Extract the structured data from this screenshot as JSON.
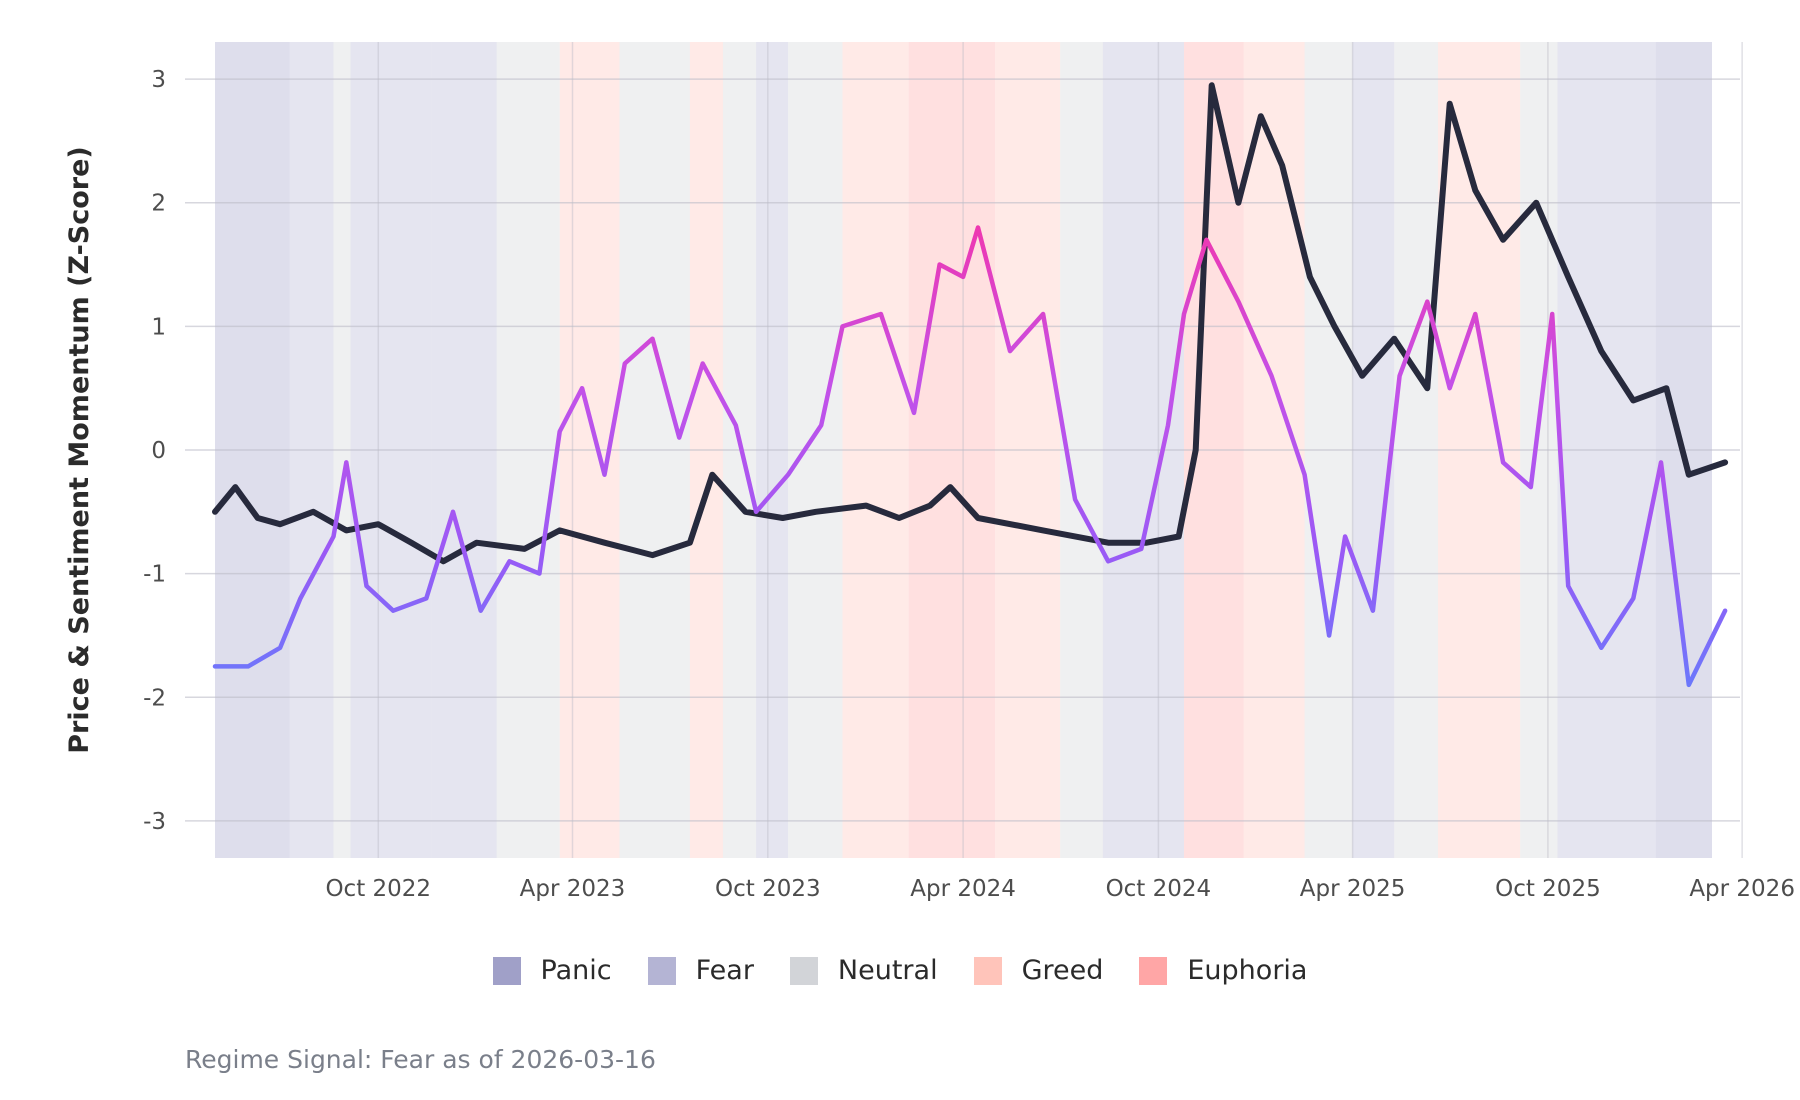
{
  "chart_data": {
    "type": "line",
    "title": "",
    "xlabel": "",
    "ylabel": "Price & Sentiment Momentum (Z-Score)",
    "caption": "Regime Signal: Fear as of 2026-03-16",
    "xlim": [
      "2022-05-01",
      "2026-03-30"
    ],
    "ylim": [
      -3.3,
      3.3
    ],
    "x_ticks": [
      {
        "date": "2022-10-01",
        "label": "Oct 2022"
      },
      {
        "date": "2023-04-01",
        "label": "Apr 2023"
      },
      {
        "date": "2023-10-01",
        "label": "Oct 2023"
      },
      {
        "date": "2024-04-01",
        "label": "Apr 2024"
      },
      {
        "date": "2024-10-01",
        "label": "Oct 2024"
      },
      {
        "date": "2025-04-01",
        "label": "Apr 2025"
      },
      {
        "date": "2025-10-01",
        "label": "Oct 2025"
      },
      {
        "date": "2026-04-01",
        "label": "Apr 2026"
      }
    ],
    "y_ticks": [
      {
        "value": 3,
        "label": "3"
      },
      {
        "value": 2,
        "label": "2"
      },
      {
        "value": 1,
        "label": "1"
      },
      {
        "value": 0,
        "label": "0"
      },
      {
        "value": -1,
        "label": "-1"
      },
      {
        "value": -2,
        "label": "-2"
      },
      {
        "value": -3,
        "label": "-3"
      }
    ],
    "grid": true,
    "legend_position": "bottom",
    "legend": [
      {
        "name": "Panic",
        "color": "#a0a0c8"
      },
      {
        "name": "Fear",
        "color": "#b4b4d4"
      },
      {
        "name": "Neutral",
        "color": "#d2d4d8"
      },
      {
        "name": "Greed",
        "color": "#ffc4ba"
      },
      {
        "name": "Euphoria",
        "color": "#ffa6a6"
      }
    ],
    "regime_bands": [
      {
        "start": "2022-05-01",
        "end": "2022-07-10",
        "regime": "Panic"
      },
      {
        "start": "2022-07-10",
        "end": "2022-08-20",
        "regime": "Fear"
      },
      {
        "start": "2022-08-20",
        "end": "2022-09-05",
        "regime": "Neutral"
      },
      {
        "start": "2022-09-05",
        "end": "2022-11-20",
        "regime": "Fear"
      },
      {
        "start": "2022-11-20",
        "end": "2023-01-20",
        "regime": "Fear"
      },
      {
        "start": "2023-01-20",
        "end": "2023-03-20",
        "regime": "Neutral"
      },
      {
        "start": "2023-03-20",
        "end": "2023-05-15",
        "regime": "Greed"
      },
      {
        "start": "2023-05-15",
        "end": "2023-07-20",
        "regime": "Neutral"
      },
      {
        "start": "2023-07-20",
        "end": "2023-08-20",
        "regime": "Greed"
      },
      {
        "start": "2023-08-20",
        "end": "2023-09-20",
        "regime": "Neutral"
      },
      {
        "start": "2023-09-20",
        "end": "2023-10-20",
        "regime": "Fear"
      },
      {
        "start": "2023-10-20",
        "end": "2023-12-10",
        "regime": "Neutral"
      },
      {
        "start": "2023-12-10",
        "end": "2024-02-10",
        "regime": "Greed"
      },
      {
        "start": "2024-02-10",
        "end": "2024-05-01",
        "regime": "Euphoria"
      },
      {
        "start": "2024-05-01",
        "end": "2024-07-01",
        "regime": "Greed"
      },
      {
        "start": "2024-07-01",
        "end": "2024-08-10",
        "regime": "Neutral"
      },
      {
        "start": "2024-08-10",
        "end": "2024-10-25",
        "regime": "Fear"
      },
      {
        "start": "2024-10-25",
        "end": "2024-12-20",
        "regime": "Euphoria"
      },
      {
        "start": "2024-12-20",
        "end": "2025-02-15",
        "regime": "Greed"
      },
      {
        "start": "2025-02-15",
        "end": "2025-04-01",
        "regime": "Neutral"
      },
      {
        "start": "2025-04-01",
        "end": "2025-05-10",
        "regime": "Fear"
      },
      {
        "start": "2025-05-10",
        "end": "2025-06-20",
        "regime": "Neutral"
      },
      {
        "start": "2025-06-20",
        "end": "2025-09-05",
        "regime": "Greed"
      },
      {
        "start": "2025-09-05",
        "end": "2025-10-10",
        "regime": "Neutral"
      },
      {
        "start": "2025-10-10",
        "end": "2026-01-10",
        "regime": "Fear"
      },
      {
        "start": "2026-01-10",
        "end": "2026-03-16",
        "regime": "Panic"
      }
    ],
    "series": [
      {
        "name": "",
        "color": "#272a3d",
        "points": [
          [
            "2022-05-01",
            -0.5
          ],
          [
            "2022-05-20",
            -0.3
          ],
          [
            "2022-06-10",
            -0.55
          ],
          [
            "2022-07-01",
            -0.6
          ],
          [
            "2022-08-01",
            -0.5
          ],
          [
            "2022-09-01",
            -0.65
          ],
          [
            "2022-10-01",
            -0.6
          ],
          [
            "2022-11-01",
            -0.75
          ],
          [
            "2022-12-01",
            -0.9
          ],
          [
            "2023-01-01",
            -0.75
          ],
          [
            "2023-02-15",
            -0.8
          ],
          [
            "2023-03-20",
            -0.65
          ],
          [
            "2023-05-01",
            -0.75
          ],
          [
            "2023-06-15",
            -0.85
          ],
          [
            "2023-07-20",
            -0.75
          ],
          [
            "2023-08-10",
            -0.2
          ],
          [
            "2023-09-10",
            -0.5
          ],
          [
            "2023-10-15",
            -0.55
          ],
          [
            "2023-11-15",
            -0.5
          ],
          [
            "2024-01-01",
            -0.45
          ],
          [
            "2024-02-01",
            -0.55
          ],
          [
            "2024-03-01",
            -0.45
          ],
          [
            "2024-03-20",
            -0.3
          ],
          [
            "2024-04-15",
            -0.55
          ],
          [
            "2024-06-15",
            -0.65
          ],
          [
            "2024-08-15",
            -0.75
          ],
          [
            "2024-09-20",
            -0.75
          ],
          [
            "2024-10-20",
            -0.7
          ],
          [
            "2024-11-05",
            0.0
          ],
          [
            "2024-11-20",
            2.95
          ],
          [
            "2024-12-15",
            2.0
          ],
          [
            "2025-01-05",
            2.7
          ],
          [
            "2025-01-25",
            2.3
          ],
          [
            "2025-02-20",
            1.4
          ],
          [
            "2025-03-15",
            1.0
          ],
          [
            "2025-04-10",
            0.6
          ],
          [
            "2025-05-10",
            0.9
          ],
          [
            "2025-06-10",
            0.5
          ],
          [
            "2025-07-01",
            2.8
          ],
          [
            "2025-07-25",
            2.1
          ],
          [
            "2025-08-20",
            1.7
          ],
          [
            "2025-09-20",
            2.0
          ],
          [
            "2025-10-20",
            1.4
          ],
          [
            "2025-11-20",
            0.8
          ],
          [
            "2025-12-20",
            0.4
          ],
          [
            "2026-01-20",
            0.5
          ],
          [
            "2026-02-10",
            -0.2
          ],
          [
            "2026-03-16",
            -0.1
          ]
        ]
      },
      {
        "name": "",
        "color": "#9b59f5",
        "points": [
          [
            "2022-05-01",
            -1.75
          ],
          [
            "2022-06-01",
            -1.75
          ],
          [
            "2022-07-01",
            -1.6
          ],
          [
            "2022-07-20",
            -1.2
          ],
          [
            "2022-08-20",
            -0.7
          ],
          [
            "2022-09-01",
            -0.1
          ],
          [
            "2022-09-20",
            -1.1
          ],
          [
            "2022-10-15",
            -1.3
          ],
          [
            "2022-11-15",
            -1.2
          ],
          [
            "2022-12-10",
            -0.5
          ],
          [
            "2023-01-05",
            -1.3
          ],
          [
            "2023-02-01",
            -0.9
          ],
          [
            "2023-03-01",
            -1.0
          ],
          [
            "2023-03-20",
            0.15
          ],
          [
            "2023-04-10",
            0.5
          ],
          [
            "2023-05-01",
            -0.2
          ],
          [
            "2023-05-20",
            0.7
          ],
          [
            "2023-06-15",
            0.9
          ],
          [
            "2023-07-10",
            0.1
          ],
          [
            "2023-08-01",
            0.7
          ],
          [
            "2023-09-01",
            0.2
          ],
          [
            "2023-09-20",
            -0.5
          ],
          [
            "2023-10-20",
            -0.2
          ],
          [
            "2023-11-20",
            0.2
          ],
          [
            "2023-12-10",
            1.0
          ],
          [
            "2024-01-15",
            1.1
          ],
          [
            "2024-02-15",
            0.3
          ],
          [
            "2024-03-10",
            1.5
          ],
          [
            "2024-04-01",
            1.4
          ],
          [
            "2024-04-15",
            1.8
          ],
          [
            "2024-05-15",
            0.8
          ],
          [
            "2024-06-15",
            1.1
          ],
          [
            "2024-07-15",
            -0.4
          ],
          [
            "2024-08-15",
            -0.9
          ],
          [
            "2024-09-15",
            -0.8
          ],
          [
            "2024-10-10",
            0.2
          ],
          [
            "2024-10-25",
            1.1
          ],
          [
            "2024-11-15",
            1.7
          ],
          [
            "2024-12-15",
            1.2
          ],
          [
            "2025-01-15",
            0.6
          ],
          [
            "2025-02-15",
            -0.2
          ],
          [
            "2025-03-10",
            -1.5
          ],
          [
            "2025-03-25",
            -0.7
          ],
          [
            "2025-04-20",
            -1.3
          ],
          [
            "2025-05-15",
            0.6
          ],
          [
            "2025-06-10",
            1.2
          ],
          [
            "2025-07-01",
            0.5
          ],
          [
            "2025-07-25",
            1.1
          ],
          [
            "2025-08-20",
            -0.1
          ],
          [
            "2025-09-15",
            -0.3
          ],
          [
            "2025-10-05",
            1.1
          ],
          [
            "2025-10-20",
            -1.1
          ],
          [
            "2025-11-20",
            -1.6
          ],
          [
            "2025-12-20",
            -1.2
          ],
          [
            "2026-01-15",
            -0.1
          ],
          [
            "2026-02-10",
            -1.9
          ],
          [
            "2026-03-16",
            -1.3
          ]
        ]
      }
    ]
  }
}
